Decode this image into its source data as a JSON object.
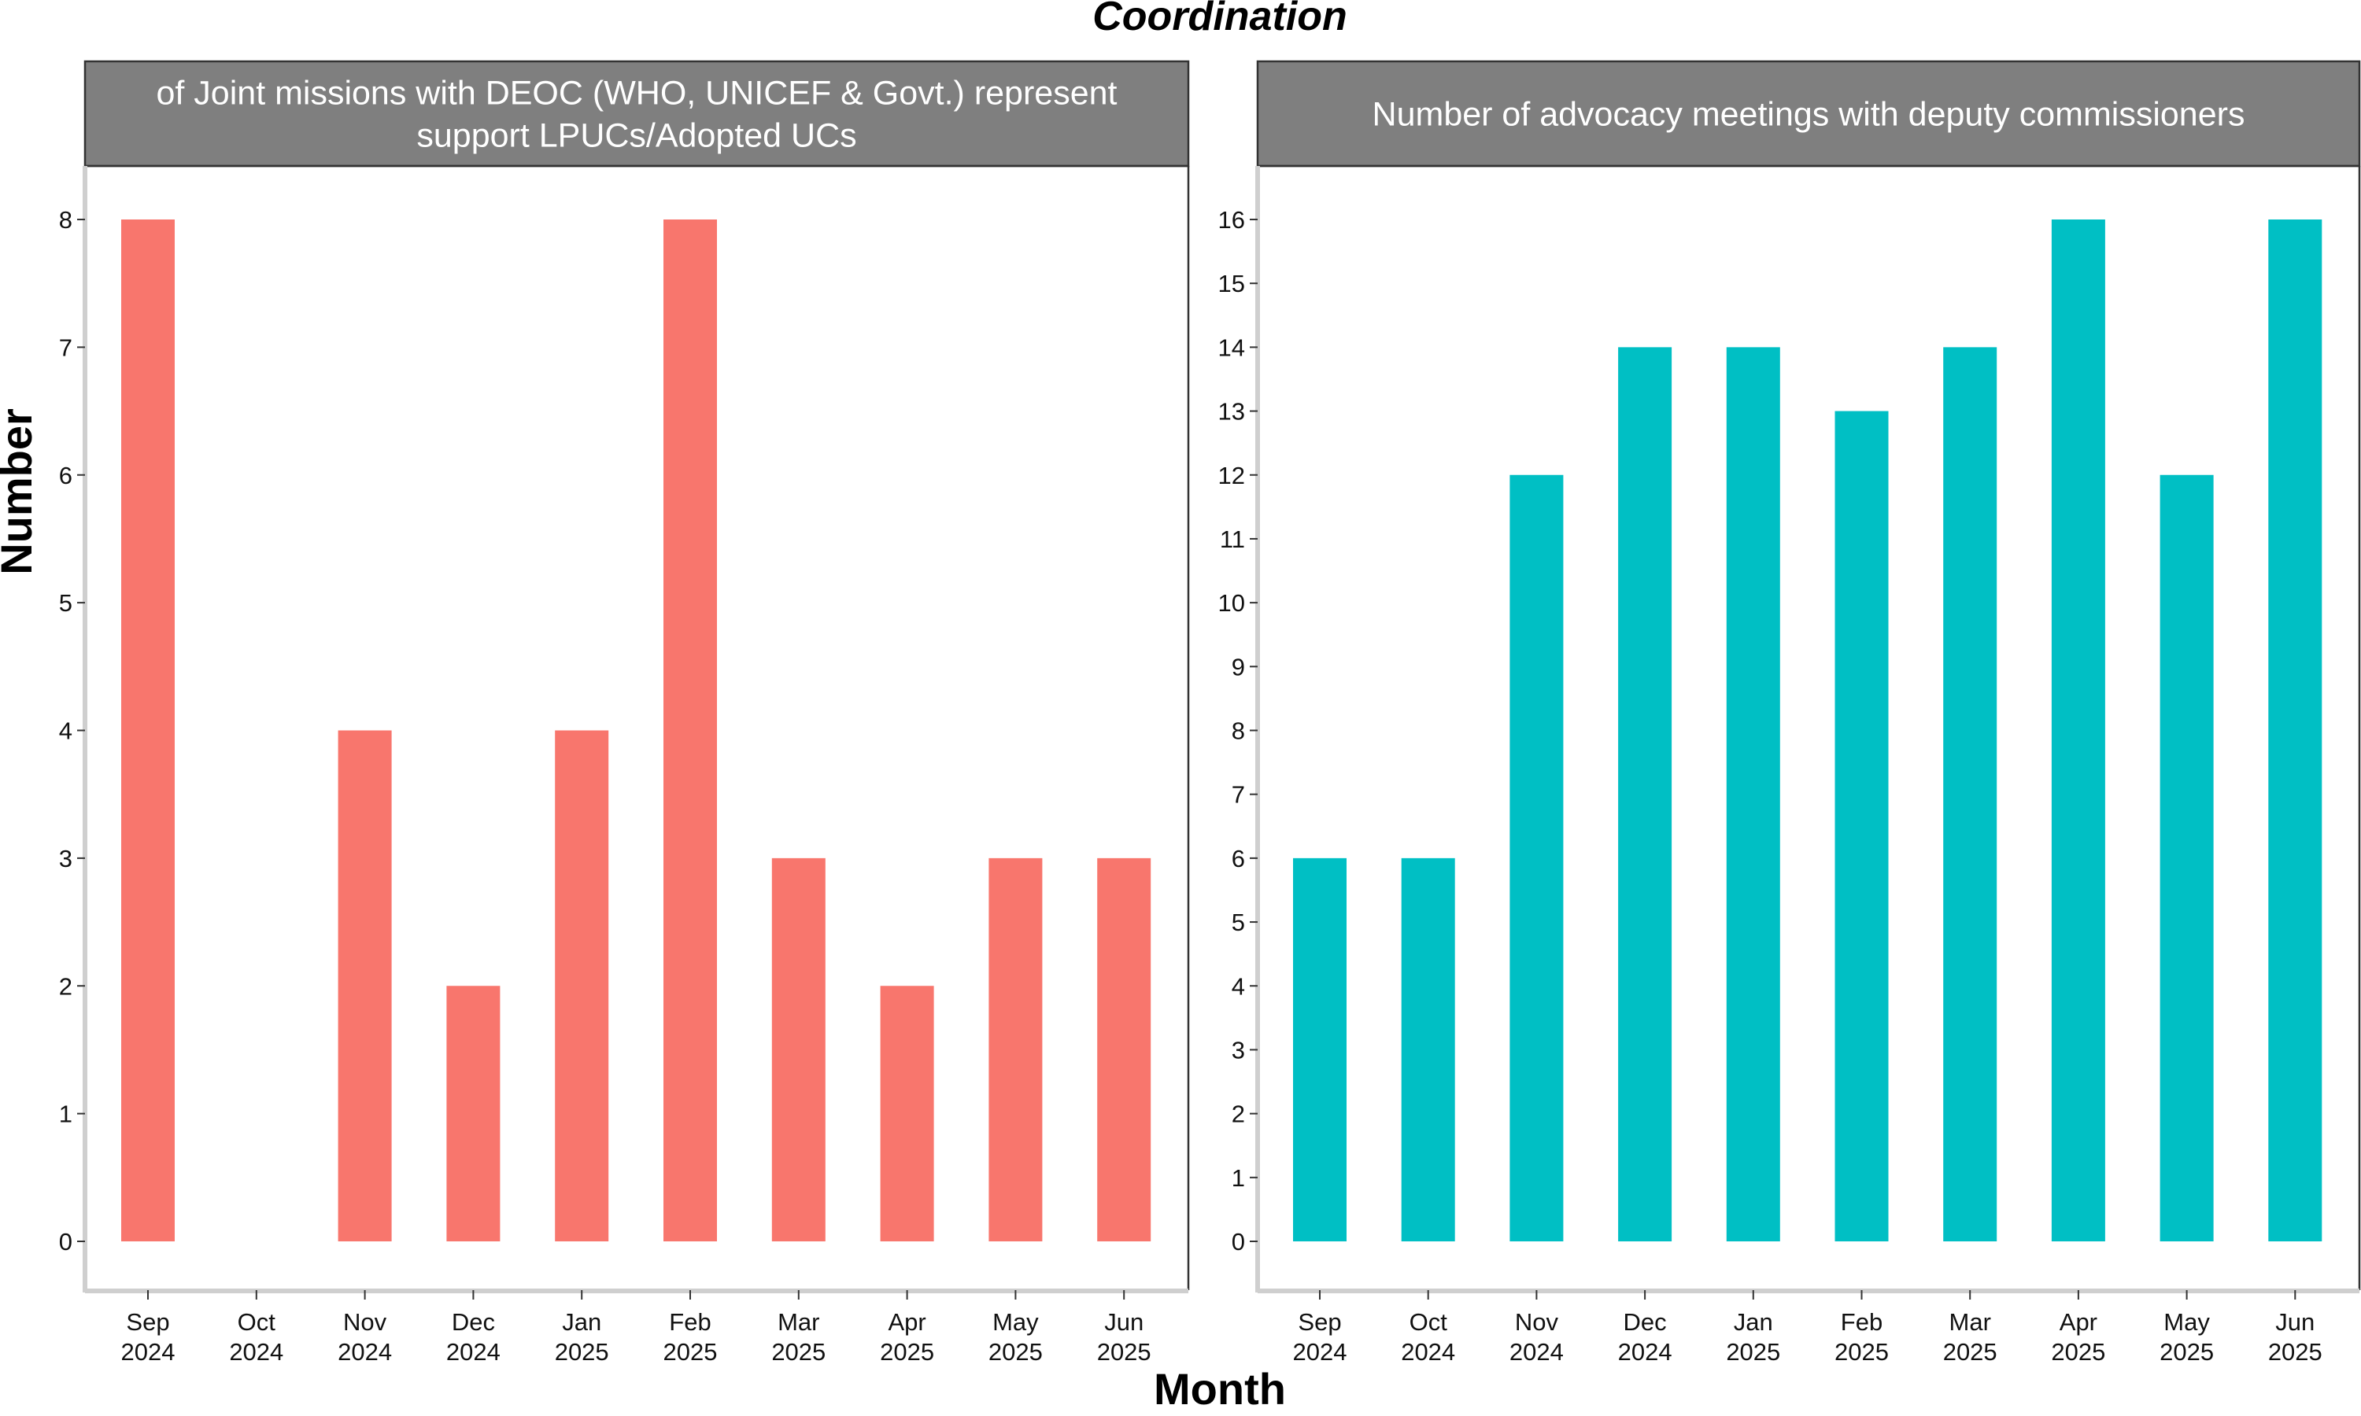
{
  "title": "Coordination",
  "xlabel": "Month",
  "ylabel": "Number",
  "chart_data": [
    {
      "type": "bar",
      "title": "of Joint missions with DEOC (WHO, UNICEF & Govt.) represent support LPUCs/Adopted UCs",
      "title_lines": [
        "of Joint missions with DEOC (WHO, UNICEF & Govt.) represent",
        "support LPUCs/Adopted UCs"
      ],
      "categories": [
        "Sep 2024",
        "Oct 2024",
        "Nov 2024",
        "Dec 2024",
        "Jan 2025",
        "Feb 2025",
        "Mar 2025",
        "Apr 2025",
        "May 2025",
        "Jun 2025"
      ],
      "category_lines": [
        [
          "Sep",
          "2024"
        ],
        [
          "Oct",
          "2024"
        ],
        [
          "Nov",
          "2024"
        ],
        [
          "Dec",
          "2024"
        ],
        [
          "Jan",
          "2025"
        ],
        [
          "Feb",
          "2025"
        ],
        [
          "Mar",
          "2025"
        ],
        [
          "Apr",
          "2025"
        ],
        [
          "May",
          "2025"
        ],
        [
          "Jun",
          "2025"
        ]
      ],
      "values": [
        8,
        0,
        4,
        2,
        4,
        8,
        3,
        2,
        3,
        3
      ],
      "ylim": [
        0,
        8
      ],
      "yticks": [
        0,
        1,
        2,
        3,
        4,
        5,
        6,
        7,
        8
      ],
      "color": "#F8766D",
      "grid": false
    },
    {
      "type": "bar",
      "title": "Number of advocacy meetings with deputy commissioners",
      "title_lines": [
        "Number of advocacy meetings with deputy commissioners"
      ],
      "categories": [
        "Sep 2024",
        "Oct 2024",
        "Nov 2024",
        "Dec 2024",
        "Jan 2025",
        "Feb 2025",
        "Mar 2025",
        "Apr 2025",
        "May 2025",
        "Jun 2025"
      ],
      "category_lines": [
        [
          "Sep",
          "2024"
        ],
        [
          "Oct",
          "2024"
        ],
        [
          "Nov",
          "2024"
        ],
        [
          "Dec",
          "2024"
        ],
        [
          "Jan",
          "2025"
        ],
        [
          "Feb",
          "2025"
        ],
        [
          "Mar",
          "2025"
        ],
        [
          "Apr",
          "2025"
        ],
        [
          "May",
          "2025"
        ],
        [
          "Jun",
          "2025"
        ]
      ],
      "values": [
        6,
        6,
        12,
        14,
        14,
        13,
        14,
        16,
        12,
        16
      ],
      "ylim": [
        0,
        16
      ],
      "yticks": [
        0,
        1,
        2,
        3,
        4,
        5,
        6,
        7,
        8,
        9,
        10,
        11,
        12,
        13,
        14,
        15,
        16
      ],
      "color": "#00BFC4",
      "grid": false
    }
  ]
}
